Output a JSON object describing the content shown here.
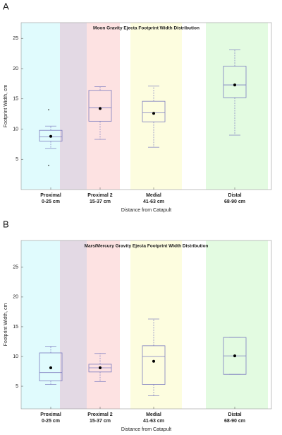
{
  "chart_data": [
    {
      "type": "box",
      "panel": "A",
      "title": "Moon Gravity Ejecta Footprint Width Distribution",
      "x_label": "Distance from Catapult",
      "y_label": "Footprint Width, cm",
      "categories": [
        "Proximal",
        "Proximal 2",
        "Medial",
        "Distal"
      ],
      "category_ranges": [
        "0-25 cm",
        "15-37 cm",
        "41-63 cm",
        "68-90 cm"
      ],
      "category_colors": [
        "#3a8fa8",
        "#8b2a2a",
        "#8a8a20",
        "#3a9a3a"
      ],
      "whisker_low": [
        6.8,
        8.3,
        7.0,
        9.0
      ],
      "q1": [
        8.0,
        11.3,
        11.2,
        15.2
      ],
      "median": [
        8.7,
        13.5,
        12.7,
        17.3
      ],
      "q3": [
        9.8,
        16.4,
        14.6,
        20.4
      ],
      "whisker_high": [
        10.5,
        17.0,
        17.1,
        23.1
      ],
      "mean": [
        8.8,
        13.4,
        12.6,
        17.3
      ],
      "outliers": [
        [
          13.2,
          4.0
        ],
        [],
        [],
        []
      ],
      "box_color": "#7d7dc0",
      "ylim": [
        0,
        27.6
      ],
      "yticks": [
        5,
        10,
        15,
        20,
        25
      ]
    },
    {
      "type": "box",
      "panel": "B",
      "title": "Mars/Mercury Gravity Ejecta Footprint Width Distribution",
      "x_label": "Distance from Catapult",
      "y_label": "Footprint Width, cm",
      "categories": [
        "Proximal",
        "Proximal 2",
        "Medial",
        "Distal"
      ],
      "category_ranges": [
        "0-25 cm",
        "15-37 cm",
        "41-63 cm",
        "68-90 cm"
      ],
      "category_colors": [
        "#3a8fa8",
        "#8b2a2a",
        "#8a8a20",
        "#3a9a3a"
      ],
      "whisker_low": [
        5.3,
        5.8,
        3.4,
        7.0
      ],
      "q1": [
        5.9,
        7.4,
        5.3,
        7.0
      ],
      "median": [
        7.3,
        8.1,
        10.0,
        10.1
      ],
      "q3": [
        10.6,
        8.7,
        11.8,
        13.2
      ],
      "whisker_high": [
        11.7,
        10.5,
        16.3,
        13.2
      ],
      "mean": [
        8.1,
        8.1,
        9.2,
        10.1
      ],
      "outliers": [
        [],
        [],
        [],
        []
      ],
      "box_color": "#7d7dc0",
      "ylim": [
        1.2,
        29.5
      ],
      "yticks": [
        5,
        10,
        15,
        20,
        25
      ]
    }
  ]
}
